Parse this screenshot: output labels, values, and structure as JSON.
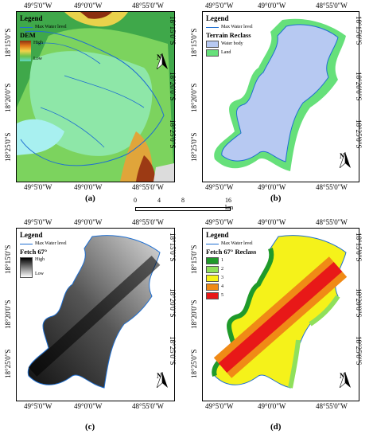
{
  "coords": {
    "lon": [
      "49°5'0\"W",
      "49°0'0\"W",
      "48°55'0\"W"
    ],
    "lat": [
      "18°15'0\"S",
      "18°20'0\"S",
      "18°25'0\"S"
    ]
  },
  "panels": {
    "a": {
      "caption": "(a)",
      "legend_title": "Legend",
      "water_level": "Max Water level",
      "layer_title": "DEM",
      "high": "High",
      "low": "Low",
      "colors": [
        "#8b2f10",
        "#e07a1a",
        "#f1d34a",
        "#6cc24a",
        "#5fd7c2"
      ]
    },
    "b": {
      "caption": "(b)",
      "legend_title": "Legend",
      "water_level": "Max Water level",
      "layer_title": "Terrain Reclass",
      "classes": [
        "Water body",
        "Land"
      ],
      "colors": {
        "water": "#b7c9f2",
        "land": "#66e07a"
      }
    },
    "c": {
      "caption": "(c)",
      "legend_title": "Legend",
      "water_level": "Max Water level",
      "layer_title": "Fetch 67°",
      "high": "High",
      "low": "Low"
    },
    "d": {
      "caption": "(d)",
      "legend_title": "Legend",
      "water_level": "Max Water level",
      "layer_title": "Fetch 67° Reclass",
      "classes": [
        "1",
        "2",
        "3",
        "4",
        "5"
      ],
      "colors": [
        "#1f9a2a",
        "#8fe05b",
        "#f5f21a",
        "#f08a16",
        "#e81818"
      ]
    }
  },
  "north_label": "N",
  "scale": {
    "ticks": [
      "0",
      "4",
      "8",
      "16 km"
    ]
  }
}
